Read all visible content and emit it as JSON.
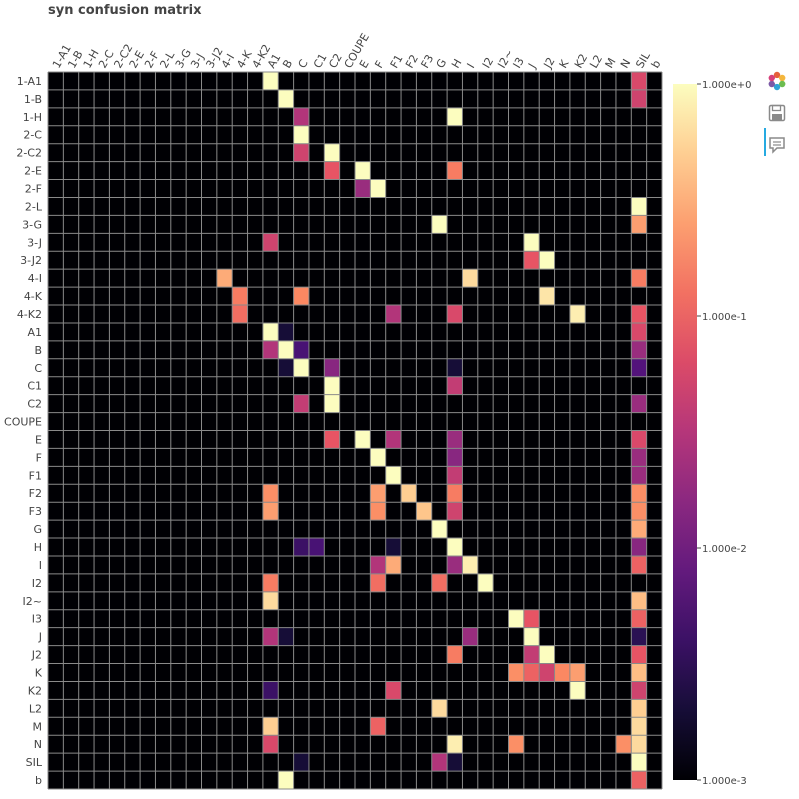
{
  "chart_data": {
    "type": "heatmap",
    "title": "syn confusion matrix",
    "rows": [
      "1-A1",
      "1-B",
      "1-H",
      "2-C",
      "2-C2",
      "2-E",
      "2-F",
      "2-L",
      "3-G",
      "3-J",
      "3-J2",
      "4-I",
      "4-K",
      "4-K2",
      "A1",
      "B",
      "C",
      "C1",
      "C2",
      "COUPE",
      "E",
      "F",
      "F1",
      "F2",
      "F3",
      "G",
      "H",
      "I",
      "I2",
      "I2~",
      "I3",
      "J",
      "J2",
      "K",
      "K2",
      "L2",
      "M",
      "N",
      "SIL",
      "b"
    ],
    "columns": [
      "1-A1",
      "1-B",
      "1-H",
      "2-C",
      "2-C2",
      "2-E",
      "2-F",
      "2-L",
      "3-G",
      "3-J",
      "3-J2",
      "4-I",
      "4-K",
      "4-K2",
      "A1",
      "B",
      "C",
      "C1",
      "C2",
      "COUPE",
      "E",
      "F",
      "F1",
      "F2",
      "F3",
      "G",
      "H",
      "I",
      "I2",
      "I2~",
      "I3",
      "J",
      "J2",
      "K",
      "K2",
      "L2",
      "M",
      "N",
      "SIL",
      "b"
    ],
    "color_scale": {
      "type": "log",
      "min": 0.001,
      "max": 1,
      "colormap": "magma"
    },
    "colorbar_ticks": [
      {
        "value": 1,
        "label": "1.000e+0"
      },
      {
        "value": 0.1,
        "label": "1.000e-1"
      },
      {
        "value": 0.01,
        "label": "1.000e-2"
      },
      {
        "value": 0.001,
        "label": "1.000e-3"
      }
    ],
    "cells": [
      [
        "1-A1",
        "A1",
        1
      ],
      [
        "1-A1",
        "SIL",
        0.06
      ],
      [
        "1-B",
        "B",
        1
      ],
      [
        "1-B",
        "SIL",
        0.05
      ],
      [
        "1-H",
        "C",
        0.03
      ],
      [
        "1-H",
        "H",
        1
      ],
      [
        "2-C",
        "C",
        1
      ],
      [
        "2-C2",
        "C",
        0.05
      ],
      [
        "2-C2",
        "C2",
        1
      ],
      [
        "2-E",
        "C2",
        0.08
      ],
      [
        "2-E",
        "E",
        1
      ],
      [
        "2-E",
        "H",
        0.15
      ],
      [
        "2-F",
        "E",
        0.02
      ],
      [
        "2-F",
        "F",
        1
      ],
      [
        "2-L",
        "SIL",
        1
      ],
      [
        "3-G",
        "G",
        1
      ],
      [
        "3-G",
        "SIL",
        0.25
      ],
      [
        "3-J",
        "A1",
        0.05
      ],
      [
        "3-J",
        "J",
        1
      ],
      [
        "3-J2",
        "J",
        0.08
      ],
      [
        "3-J2",
        "J2",
        1
      ],
      [
        "4-I",
        "4-I",
        0.3
      ],
      [
        "4-I",
        "I",
        0.6
      ],
      [
        "4-I",
        "SIL",
        0.15
      ],
      [
        "4-K",
        "4-K",
        0.15
      ],
      [
        "4-K",
        "C",
        0.18
      ],
      [
        "4-K",
        "J2",
        0.7
      ],
      [
        "4-K2",
        "4-K",
        0.12
      ],
      [
        "4-K2",
        "F1",
        0.03
      ],
      [
        "4-K2",
        "H",
        0.06
      ],
      [
        "4-K2",
        "K2",
        0.8
      ],
      [
        "4-K2",
        "SIL",
        0.08
      ],
      [
        "A1",
        "A1",
        1
      ],
      [
        "A1",
        "B",
        0.002
      ],
      [
        "A1",
        "SIL",
        0.06
      ],
      [
        "B",
        "A1",
        0.03
      ],
      [
        "B",
        "B",
        1
      ],
      [
        "B",
        "C",
        0.005
      ],
      [
        "B",
        "SIL",
        0.02
      ],
      [
        "C",
        "B",
        0.002
      ],
      [
        "C",
        "C",
        1
      ],
      [
        "C",
        "C2",
        0.015
      ],
      [
        "C",
        "H",
        0.002
      ],
      [
        "C",
        "SIL",
        0.006
      ],
      [
        "C1",
        "C2",
        1
      ],
      [
        "C1",
        "H",
        0.04
      ],
      [
        "C2",
        "C",
        0.04
      ],
      [
        "C2",
        "C2",
        1
      ],
      [
        "C2",
        "SIL",
        0.02
      ],
      [
        "E",
        "C2",
        0.08
      ],
      [
        "E",
        "E",
        1
      ],
      [
        "E",
        "F1",
        0.03
      ],
      [
        "E",
        "H",
        0.02
      ],
      [
        "E",
        "SIL",
        0.06
      ],
      [
        "F",
        "F",
        1
      ],
      [
        "F",
        "H",
        0.015
      ],
      [
        "F",
        "SIL",
        0.02
      ],
      [
        "F1",
        "F1",
        1
      ],
      [
        "F1",
        "H",
        0.04
      ],
      [
        "F1",
        "SIL",
        0.02
      ],
      [
        "F2",
        "A1",
        0.2
      ],
      [
        "F2",
        "F",
        0.25
      ],
      [
        "F2",
        "F2",
        0.5
      ],
      [
        "F2",
        "H",
        0.15
      ],
      [
        "F2",
        "SIL",
        0.2
      ],
      [
        "F3",
        "A1",
        0.25
      ],
      [
        "F3",
        "F",
        0.2
      ],
      [
        "F3",
        "F3",
        0.45
      ],
      [
        "F3",
        "H",
        0.05
      ],
      [
        "F3",
        "SIL",
        0.2
      ],
      [
        "G",
        "G",
        1
      ],
      [
        "G",
        "SIL",
        0.3
      ],
      [
        "H",
        "C",
        0.004
      ],
      [
        "H",
        "C1",
        0.005
      ],
      [
        "H",
        "F1",
        0.002
      ],
      [
        "H",
        "H",
        1
      ],
      [
        "H",
        "SIL",
        0.015
      ],
      [
        "I",
        "F",
        0.03
      ],
      [
        "I",
        "F1",
        0.3
      ],
      [
        "I",
        "H",
        0.02
      ],
      [
        "I",
        "I",
        0.8
      ],
      [
        "I",
        "SIL",
        0.1
      ],
      [
        "I2",
        "A1",
        0.15
      ],
      [
        "I2",
        "F",
        0.12
      ],
      [
        "I2",
        "G",
        0.12
      ],
      [
        "I2",
        "I2",
        1
      ],
      [
        "I2~",
        "A1",
        0.6
      ],
      [
        "I2~",
        "SIL",
        0.4
      ],
      [
        "I3",
        "I3",
        1
      ],
      [
        "I3",
        "J",
        0.08
      ],
      [
        "I3",
        "SIL",
        0.1
      ],
      [
        "J",
        "A1",
        0.03
      ],
      [
        "J",
        "B",
        0.002
      ],
      [
        "J",
        "I",
        0.02
      ],
      [
        "J",
        "J",
        1
      ],
      [
        "J",
        "SIL",
        0.003
      ],
      [
        "J2",
        "H",
        0.15
      ],
      [
        "J2",
        "J",
        0.04
      ],
      [
        "J2",
        "J2",
        1
      ],
      [
        "J2",
        "SIL",
        0.08
      ],
      [
        "K",
        "I3",
        0.2
      ],
      [
        "K",
        "J",
        0.1
      ],
      [
        "K",
        "J2",
        0.05
      ],
      [
        "K",
        "K",
        0.18
      ],
      [
        "K",
        "K2",
        0.25
      ],
      [
        "K",
        "SIL",
        0.4
      ],
      [
        "K2",
        "A1",
        0.004
      ],
      [
        "K2",
        "F1",
        0.06
      ],
      [
        "K2",
        "K2",
        1
      ],
      [
        "K2",
        "SIL",
        0.05
      ],
      [
        "L2",
        "G",
        0.6
      ],
      [
        "L2",
        "SIL",
        0.5
      ],
      [
        "M",
        "A1",
        0.5
      ],
      [
        "M",
        "F",
        0.1
      ],
      [
        "M",
        "SIL",
        0.6
      ],
      [
        "N",
        "A1",
        0.06
      ],
      [
        "N",
        "H",
        0.8
      ],
      [
        "N",
        "I3",
        0.2
      ],
      [
        "N",
        "N",
        0.2
      ],
      [
        "N",
        "SIL",
        0.6
      ],
      [
        "SIL",
        "A1",
        0.001
      ],
      [
        "SIL",
        "C",
        0.002
      ],
      [
        "SIL",
        "G",
        0.03
      ],
      [
        "SIL",
        "H",
        0.002
      ],
      [
        "SIL",
        "SIL",
        1
      ],
      [
        "b",
        "B",
        1
      ],
      [
        "b",
        "SIL",
        0.1
      ]
    ]
  },
  "toolbar": {
    "icons": [
      "bokeh-logo-icon",
      "save-icon",
      "hover-icon"
    ]
  }
}
